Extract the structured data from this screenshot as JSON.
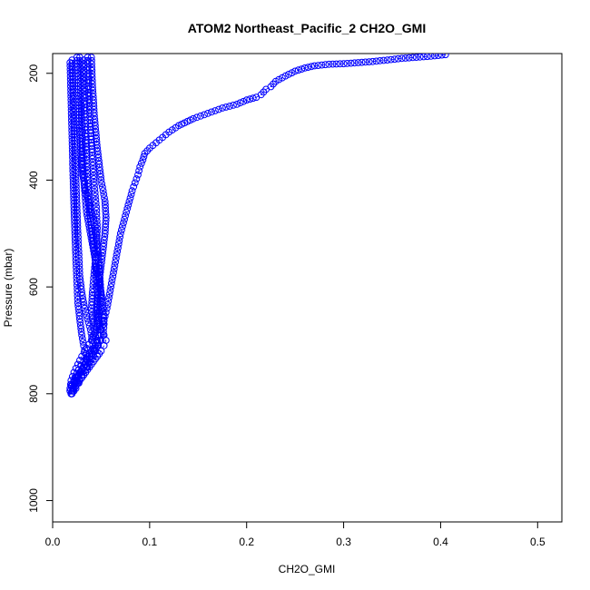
{
  "chart_data": {
    "type": "scatter",
    "title": "ATOM2 Northeast_Pacific_2 CH2O_GMI",
    "xlabel": "CH2O_GMI",
    "ylabel": "Pressure (mbar)",
    "xlim": [
      0,
      0.525
    ],
    "ylim": [
      1040,
      163
    ],
    "y_inverted": true,
    "grid": false,
    "legend": "none",
    "marker": "open-circle",
    "connected": true,
    "color": "#0000ff",
    "x_ticks": [
      {
        "value": 0,
        "label": "0.0"
      },
      {
        "value": 0.1,
        "label": "0.1"
      },
      {
        "value": 0.2,
        "label": "0.2"
      },
      {
        "value": 0.3,
        "label": "0.3"
      },
      {
        "value": 0.4,
        "label": "0.4"
      },
      {
        "value": 0.5,
        "label": "0.5"
      }
    ],
    "y_ticks": [
      {
        "value": 200,
        "label": "200"
      },
      {
        "value": 400,
        "label": "400"
      },
      {
        "value": 600,
        "label": "600"
      },
      {
        "value": 800,
        "label": "800"
      },
      {
        "value": 1000,
        "label": "1000"
      }
    ],
    "series": [
      {
        "x": [
          0.405,
          0.39,
          0.375,
          0.36,
          0.345,
          0.33,
          0.315,
          0.3,
          0.285,
          0.27,
          0.26,
          0.25,
          0.24,
          0.23,
          0.225,
          0.22,
          0.215,
          0.21,
          0.2,
          0.19,
          0.175,
          0.16,
          0.145,
          0.13,
          0.12,
          0.11,
          0.1,
          0.095,
          0.093,
          0.09,
          0.088,
          0.085,
          0.082,
          0.079,
          0.076,
          0.073,
          0.07,
          0.068,
          0.066,
          0.064,
          0.062,
          0.06,
          0.058,
          0.056,
          0.054,
          0.052,
          0.05,
          0.048,
          0.046,
          0.044,
          0.042,
          0.04,
          0.038,
          0.036,
          0.034,
          0.032,
          0.03,
          0.028,
          0.026,
          0.024,
          0.022,
          0.02,
          0.019
        ],
        "y": [
          165,
          168,
          170,
          172,
          175,
          178,
          180,
          182,
          183,
          186,
          190,
          196,
          205,
          215,
          225,
          230,
          240,
          245,
          250,
          258,
          265,
          275,
          285,
          298,
          310,
          325,
          340,
          350,
          362,
          375,
          390,
          405,
          420,
          440,
          460,
          480,
          500,
          520,
          540,
          560,
          580,
          600,
          620,
          640,
          655,
          670,
          680,
          690,
          700,
          710,
          720,
          730,
          740,
          750,
          760,
          765,
          770,
          775,
          780,
          785,
          790,
          795,
          800
        ]
      },
      {
        "x": [
          0.04,
          0.041,
          0.043,
          0.046,
          0.05,
          0.054,
          0.055,
          0.054,
          0.052,
          0.05,
          0.048,
          0.046,
          0.045,
          0.046,
          0.05,
          0.053,
          0.055,
          0.053,
          0.05,
          0.046,
          0.042,
          0.038,
          0.034,
          0.03,
          0.027,
          0.024,
          0.022,
          0.02
        ],
        "y": [
          170,
          220,
          280,
          340,
          400,
          440,
          470,
          500,
          530,
          560,
          590,
          620,
          650,
          670,
          680,
          690,
          700,
          710,
          720,
          730,
          740,
          750,
          760,
          770,
          780,
          790,
          795,
          800
        ]
      },
      {
        "x": [
          0.025,
          0.026,
          0.027,
          0.029,
          0.031,
          0.034,
          0.037,
          0.04,
          0.043,
          0.045,
          0.046,
          0.047,
          0.048,
          0.049,
          0.05,
          0.048,
          0.045,
          0.04,
          0.035,
          0.03,
          0.026,
          0.022,
          0.019,
          0.018
        ],
        "y": [
          170,
          230,
          290,
          340,
          390,
          420,
          440,
          460,
          480,
          500,
          520,
          540,
          560,
          590,
          620,
          650,
          680,
          700,
          715,
          730,
          745,
          760,
          775,
          790
        ]
      },
      {
        "x": [
          0.032,
          0.033,
          0.034,
          0.035,
          0.036,
          0.037,
          0.038,
          0.04,
          0.042,
          0.044,
          0.045,
          0.046,
          0.047,
          0.048,
          0.049,
          0.05,
          0.048,
          0.044,
          0.038,
          0.032,
          0.027,
          0.023,
          0.02
        ],
        "y": [
          175,
          240,
          300,
          350,
          400,
          430,
          460,
          490,
          520,
          550,
          580,
          610,
          640,
          660,
          680,
          690,
          700,
          710,
          725,
          740,
          755,
          770,
          785
        ]
      },
      {
        "x": [
          0.02,
          0.021,
          0.022,
          0.023,
          0.024,
          0.025,
          0.026,
          0.027,
          0.028,
          0.03,
          0.033,
          0.036,
          0.039,
          0.041,
          0.042,
          0.041,
          0.038,
          0.034,
          0.03,
          0.026,
          0.022,
          0.019,
          0.018
        ],
        "y": [
          175,
          230,
          290,
          350,
          400,
          450,
          500,
          540,
          580,
          610,
          640,
          660,
          680,
          700,
          715,
          725,
          735,
          745,
          755,
          765,
          775,
          785,
          795
        ]
      },
      {
        "x": [
          0.028,
          0.029,
          0.03,
          0.031,
          0.033,
          0.035,
          0.038,
          0.041,
          0.044,
          0.047,
          0.05,
          0.052,
          0.053,
          0.052,
          0.05,
          0.047,
          0.043,
          0.038,
          0.033,
          0.028,
          0.024,
          0.021,
          0.019
        ],
        "y": [
          170,
          240,
          310,
          370,
          420,
          460,
          490,
          520,
          550,
          580,
          610,
          640,
          670,
          690,
          700,
          710,
          720,
          730,
          745,
          760,
          775,
          790,
          800
        ]
      },
      {
        "x": [
          0.018,
          0.019,
          0.02,
          0.021,
          0.022,
          0.023,
          0.024,
          0.025,
          0.026,
          0.028,
          0.03,
          0.032,
          0.034,
          0.035,
          0.034,
          0.031,
          0.027,
          0.023,
          0.02,
          0.018
        ],
        "y": [
          180,
          250,
          320,
          390,
          450,
          500,
          550,
          590,
          630,
          660,
          690,
          710,
          725,
          735,
          745,
          755,
          765,
          775,
          785,
          795
        ]
      },
      {
        "x": [
          0.036,
          0.037,
          0.039,
          0.041,
          0.043,
          0.045,
          0.046,
          0.045,
          0.043,
          0.041,
          0.04,
          0.041,
          0.043,
          0.045,
          0.046,
          0.044,
          0.04,
          0.035,
          0.03,
          0.025,
          0.021
        ],
        "y": [
          170,
          230,
          300,
          360,
          410,
          450,
          490,
          530,
          570,
          610,
          640,
          660,
          680,
          700,
          710,
          720,
          735,
          750,
          765,
          780,
          795
        ]
      }
    ]
  }
}
